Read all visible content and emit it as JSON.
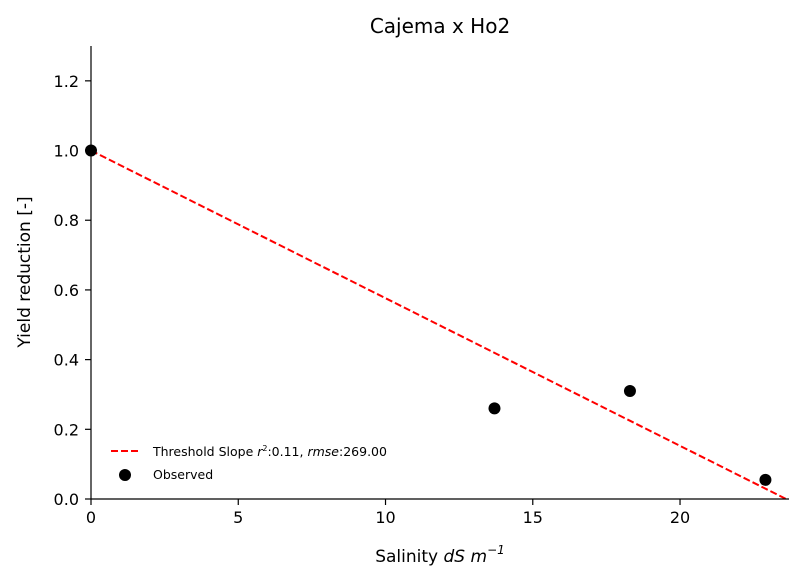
{
  "chart_data": {
    "type": "scatter",
    "title": "Cajema x Ho2",
    "xlabel_prefix": "Salinity ",
    "xlabel_units": "dS m",
    "xlabel_exponent": "−1",
    "ylabel": "Yield reduction [-]",
    "xlim": [
      0,
      23.7
    ],
    "ylim": [
      0,
      1.3
    ],
    "x_ticks": [
      0,
      5,
      10,
      15,
      20
    ],
    "x_tick_labels": [
      "0",
      "5",
      "10",
      "15",
      "20"
    ],
    "y_ticks": [
      0.0,
      0.2,
      0.4,
      0.6,
      0.8,
      1.0,
      1.2
    ],
    "y_tick_labels": [
      "0.0",
      "0.2",
      "0.4",
      "0.6",
      "0.8",
      "1.0",
      "1.2"
    ],
    "grid": false,
    "legend_position": "lower-left",
    "series": [
      {
        "name": "Observed",
        "kind": "scatter",
        "color": "#000000",
        "x": [
          0.0,
          13.7,
          18.3,
          22.9
        ],
        "y": [
          1.0,
          0.26,
          0.31,
          0.055
        ]
      },
      {
        "kind": "line",
        "style": "dashed",
        "color": "#ff0000",
        "x": [
          0.0,
          23.6
        ],
        "y": [
          1.0,
          0.0
        ]
      }
    ],
    "legend": {
      "threshold_label": "Threshold Slope ",
      "r2_symbol": "r",
      "r2_sup": "2",
      "r2_text": ":0.11, ",
      "rmse_symbol": "rmse",
      "rmse_text": ":269.00",
      "observed_label": "Observed"
    }
  }
}
